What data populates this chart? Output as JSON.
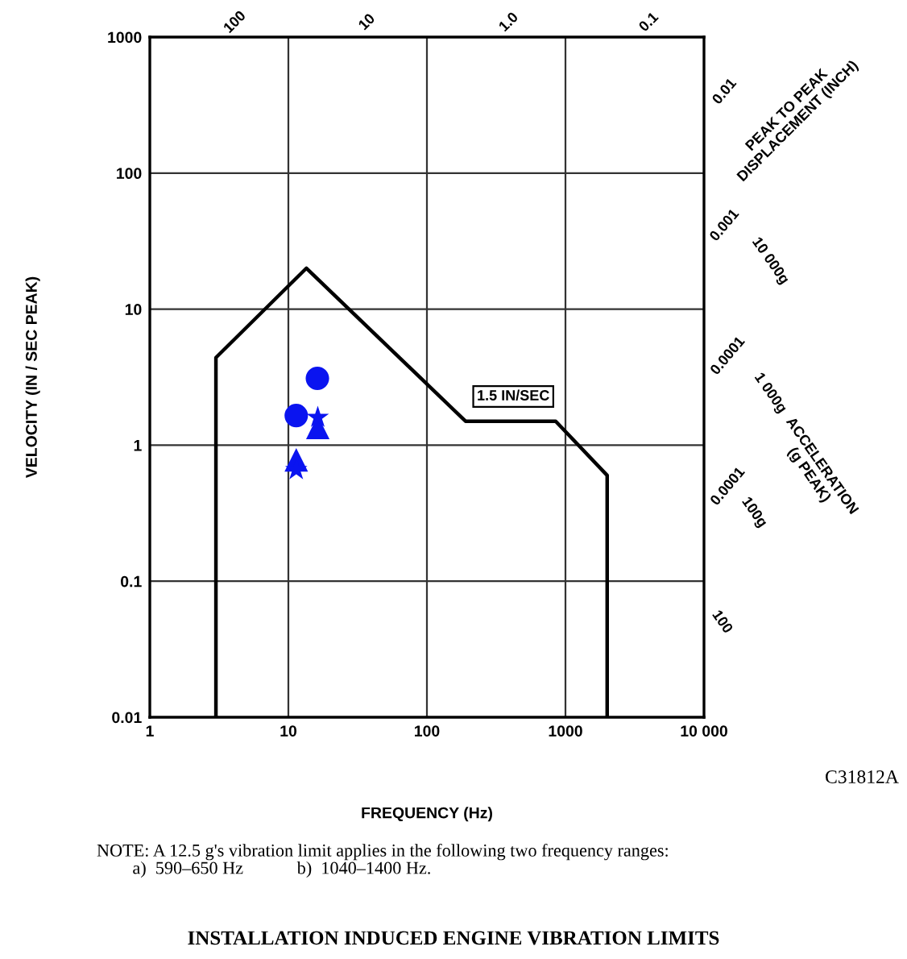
{
  "chart_data": {
    "type": "scatter",
    "title": "INSTALLATION INDUCED ENGINE VIBRATION LIMITS",
    "xlabel": "FREQUENCY (Hz)",
    "ylabel": "VELOCITY (IN / SEC PEAK)",
    "log": "xy",
    "xlim": [
      1,
      10000
    ],
    "ylim": [
      0.01,
      1000
    ],
    "xticks": [
      1,
      10,
      100,
      1000,
      {
        "value": 10000,
        "label": "10 000"
      }
    ],
    "yticks": [
      0.01,
      0.1,
      1,
      10,
      100,
      1000
    ],
    "grid": true,
    "legend": false,
    "series": [
      {
        "type": "line",
        "color": "#000000",
        "marker": "none",
        "line_style": "solid",
        "x": [
          3,
          3,
          13.5,
          190,
          850,
          2000,
          2000
        ],
        "values": [
          0.01,
          4.4,
          20,
          1.5,
          1.5,
          0.6,
          0.01
        ]
      },
      {
        "color": "#0a14f0",
        "marker": "circle",
        "x": [
          16.2,
          11.4
        ],
        "values": [
          3.1,
          1.65
        ]
      },
      {
        "color": "#0a14f0",
        "marker": "triangle",
        "x": [
          16.3,
          11.4
        ],
        "values": [
          1.35,
          0.78
        ]
      },
      {
        "color": "#0a14f0",
        "marker": "star",
        "x": [
          16.3,
          11.4
        ],
        "values": [
          1.6,
          0.66
        ]
      }
    ],
    "annotations": [
      {
        "text": "1.5 IN/SEC",
        "x": 420,
        "y": 1.5
      },
      "100",
      "10",
      "1.0",
      "0.1",
      "0.01",
      "PEAK TO PEAK\nDISPLACEMENT (INCH)",
      "0.001",
      "10 000g",
      "0.0001",
      "1 000g",
      "ACCELERATION\n(g PEAK)",
      "0.0001",
      "100g",
      "100",
      "C31812A",
      "NOTE: A 12.5 g's vibration limit applies in the following two frequency ranges:\n        a)  590–650 Hz            b)  1040–1400 Hz."
    ]
  }
}
